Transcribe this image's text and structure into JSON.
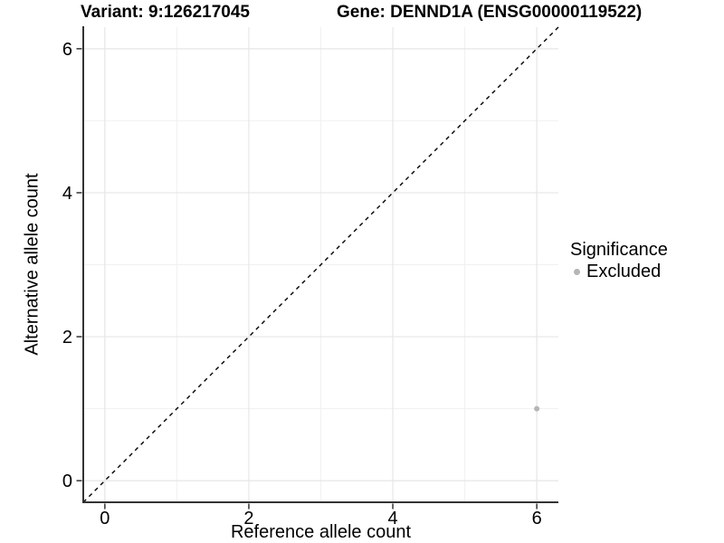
{
  "chart_data": {
    "type": "scatter",
    "title_left": "Variant: 9:126217045",
    "title_right": "Gene: DENND1A (ENSG00000119522)",
    "xlabel": "Reference allele count",
    "ylabel": "Alternative allele count",
    "xlim": [
      -0.3,
      6.3
    ],
    "ylim": [
      -0.3,
      6.3
    ],
    "x_ticks": [
      0,
      2,
      4,
      6
    ],
    "y_ticks": [
      0,
      2,
      4,
      6
    ],
    "x_minor_ticks": [
      1,
      3,
      5
    ],
    "y_minor_ticks": [
      1,
      3,
      5
    ],
    "grid": true,
    "points": [
      {
        "x": 6,
        "y": 1,
        "series": "Excluded"
      }
    ],
    "reference_line": {
      "type": "identity",
      "style": "dashed",
      "color": "#000000",
      "x1": -0.3,
      "y1": -0.3,
      "x2": 6.3,
      "y2": 6.3
    },
    "legend": {
      "title": "Significance",
      "position": "right",
      "entries": [
        {
          "label": "Excluded",
          "color": "#b5b5b5"
        }
      ]
    },
    "colors": {
      "background": "#ffffff",
      "axis_line": "#333333",
      "tick_mark": "#333333",
      "major_grid": "#e6e6e6",
      "minor_grid": "#f1f1f1",
      "text": "#000000"
    }
  }
}
